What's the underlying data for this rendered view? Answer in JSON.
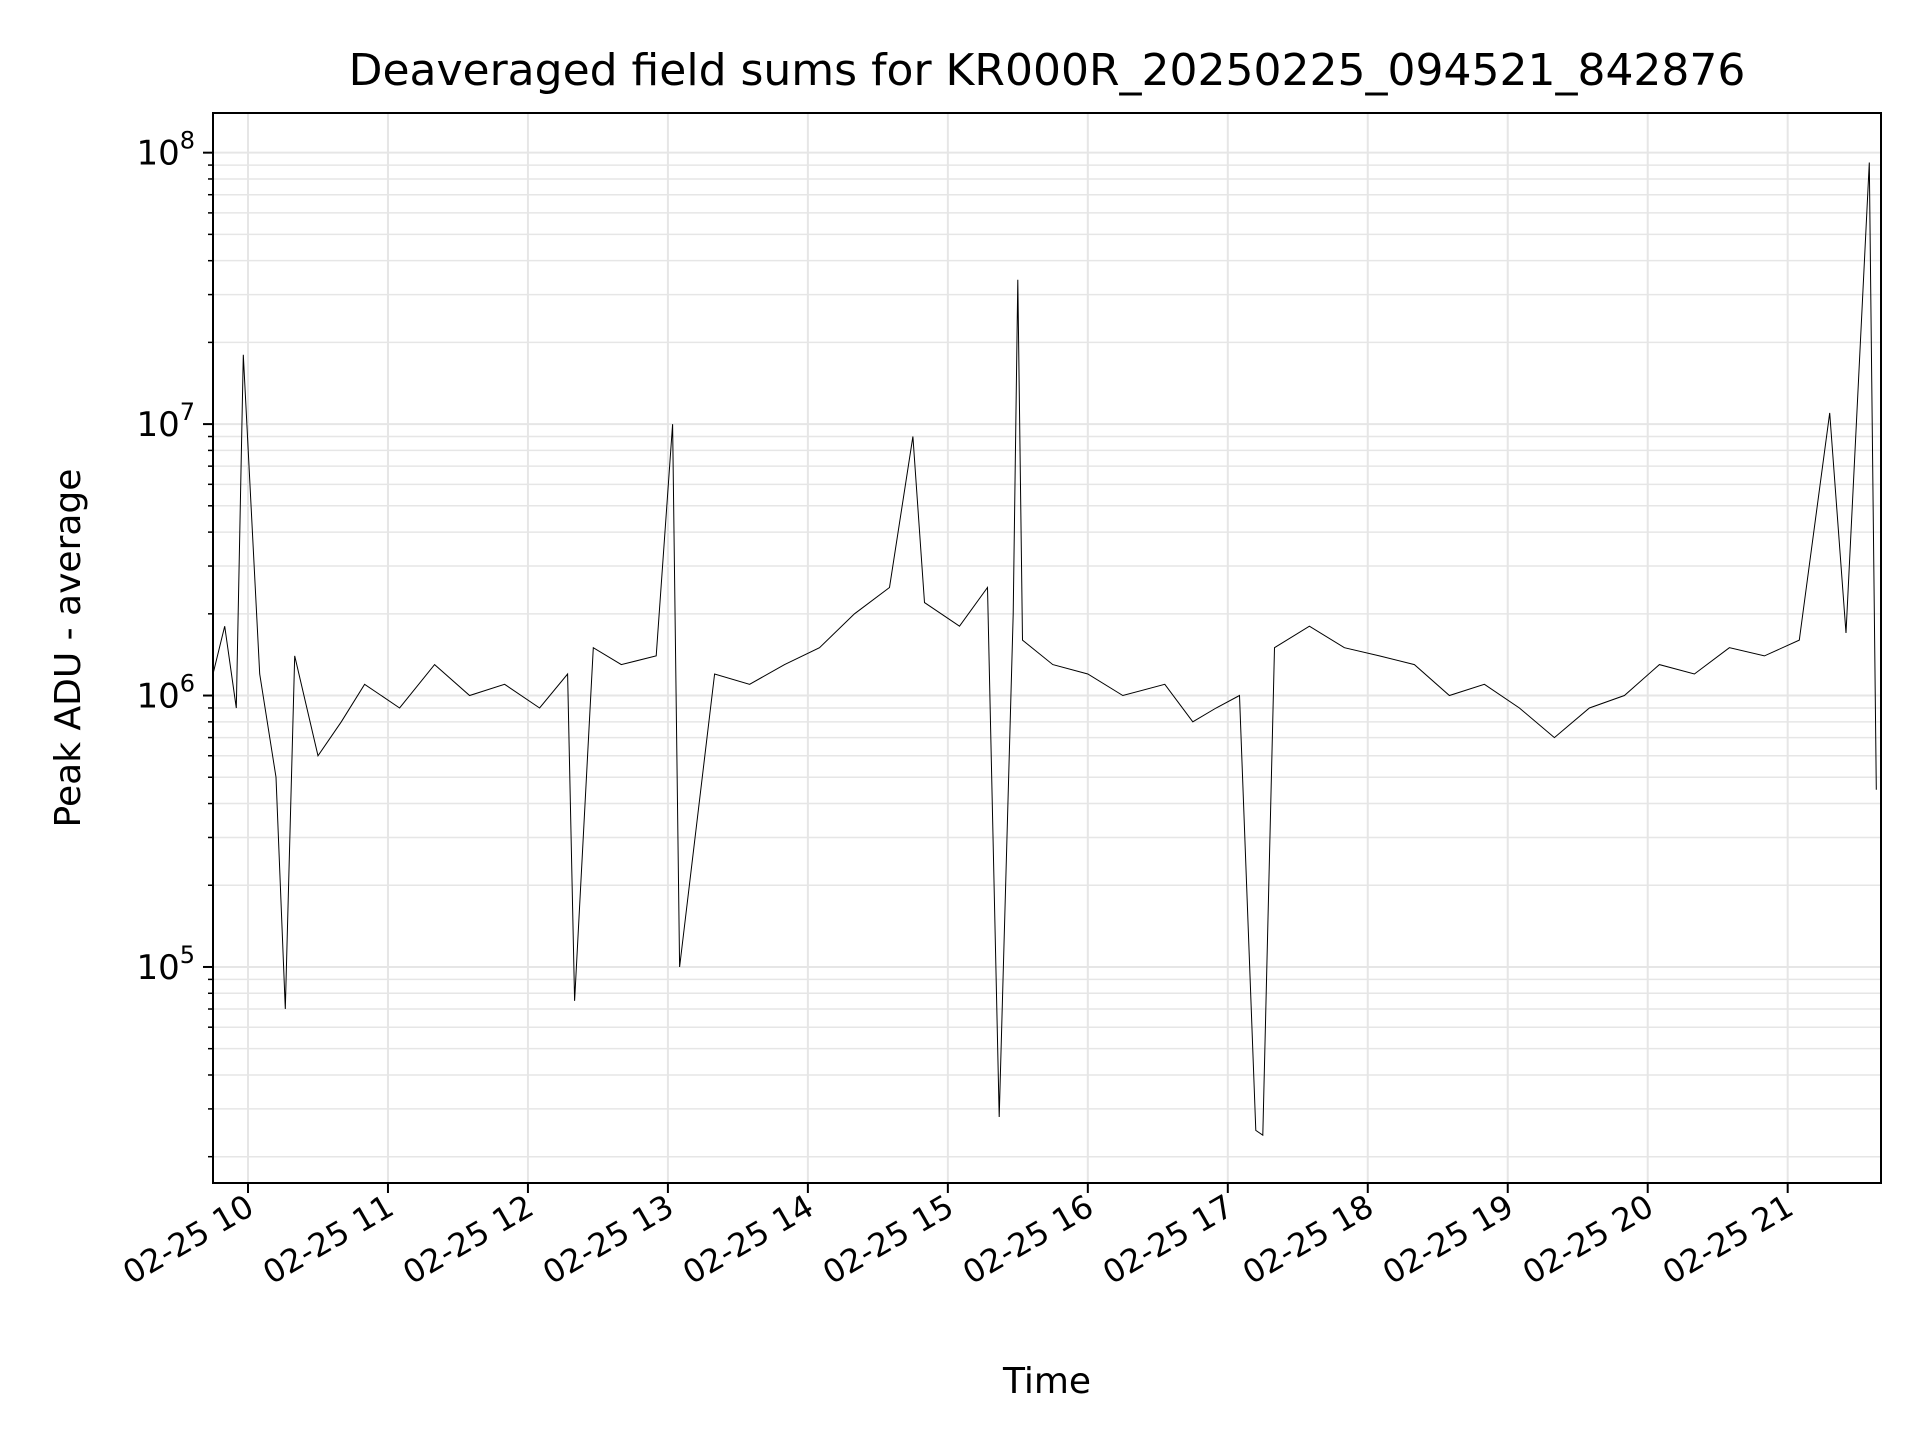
{
  "chart_data": {
    "type": "line",
    "title": "Deaveraged field sums for KR000R_20250225_094521_842876",
    "xlabel": "Time",
    "ylabel": "Peak ADU - average",
    "yscale": "log",
    "grid": true,
    "legend": "none",
    "line_color": "#000000",
    "xlim": [
      "2025-02-25 09:45",
      "2025-02-25 21:40"
    ],
    "ylim": [
      16000,
      140000000
    ],
    "x_ticks": [
      {
        "t": "2025-02-25 10:00",
        "label": "02-25 10"
      },
      {
        "t": "2025-02-25 11:00",
        "label": "02-25 11"
      },
      {
        "t": "2025-02-25 12:00",
        "label": "02-25 12"
      },
      {
        "t": "2025-02-25 13:00",
        "label": "02-25 13"
      },
      {
        "t": "2025-02-25 14:00",
        "label": "02-25 14"
      },
      {
        "t": "2025-02-25 15:00",
        "label": "02-25 15"
      },
      {
        "t": "2025-02-25 16:00",
        "label": "02-25 16"
      },
      {
        "t": "2025-02-25 17:00",
        "label": "02-25 17"
      },
      {
        "t": "2025-02-25 18:00",
        "label": "02-25 18"
      },
      {
        "t": "2025-02-25 19:00",
        "label": "02-25 19"
      },
      {
        "t": "2025-02-25 20:00",
        "label": "02-25 20"
      },
      {
        "t": "2025-02-25 21:00",
        "label": "02-25 21"
      }
    ],
    "y_ticks": [
      {
        "value": 100000,
        "base": "10",
        "exp": "5"
      },
      {
        "value": 1000000,
        "base": "10",
        "exp": "6"
      },
      {
        "value": 10000000,
        "base": "10",
        "exp": "7"
      },
      {
        "value": 100000000,
        "base": "10",
        "exp": "8"
      }
    ],
    "series": [
      {
        "x": [
          "2025-02-25 09:45",
          "2025-02-25 09:50",
          "2025-02-25 09:55",
          "2025-02-25 09:58",
          "2025-02-25 10:05",
          "2025-02-25 10:12",
          "2025-02-25 10:16",
          "2025-02-25 10:20",
          "2025-02-25 10:30",
          "2025-02-25 10:40",
          "2025-02-25 10:50",
          "2025-02-25 11:05",
          "2025-02-25 11:20",
          "2025-02-25 11:35",
          "2025-02-25 11:50",
          "2025-02-25 12:05",
          "2025-02-25 12:17",
          "2025-02-25 12:20",
          "2025-02-25 12:28",
          "2025-02-25 12:40",
          "2025-02-25 12:55",
          "2025-02-25 13:02",
          "2025-02-25 13:05",
          "2025-02-25 13:20",
          "2025-02-25 13:35",
          "2025-02-25 13:50",
          "2025-02-25 14:05",
          "2025-02-25 14:20",
          "2025-02-25 14:35",
          "2025-02-25 14:45",
          "2025-02-25 14:50",
          "2025-02-25 15:05",
          "2025-02-25 15:17",
          "2025-02-25 15:22",
          "2025-02-25 15:28",
          "2025-02-25 15:30",
          "2025-02-25 15:32",
          "2025-02-25 15:45",
          "2025-02-25 16:00",
          "2025-02-25 16:15",
          "2025-02-25 16:33",
          "2025-02-25 16:45",
          "2025-02-25 16:55",
          "2025-02-25 17:05",
          "2025-02-25 17:12",
          "2025-02-25 17:15",
          "2025-02-25 17:20",
          "2025-02-25 17:35",
          "2025-02-25 17:50",
          "2025-02-25 18:05",
          "2025-02-25 18:20",
          "2025-02-25 18:35",
          "2025-02-25 18:50",
          "2025-02-25 19:05",
          "2025-02-25 19:20",
          "2025-02-25 19:35",
          "2025-02-25 19:50",
          "2025-02-25 20:05",
          "2025-02-25 20:20",
          "2025-02-25 20:35",
          "2025-02-25 20:50",
          "2025-02-25 21:05",
          "2025-02-25 21:18",
          "2025-02-25 21:25",
          "2025-02-25 21:35",
          "2025-02-25 21:38"
        ],
        "y": [
          1200000,
          1800000,
          900000,
          18000000,
          1200000,
          500000,
          70000,
          1400000,
          600000,
          800000,
          1100000,
          900000,
          1300000,
          1000000,
          1100000,
          900000,
          1200000,
          75000,
          1500000,
          1300000,
          1400000,
          10000000,
          100000,
          1200000,
          1100000,
          1300000,
          1500000,
          2000000,
          2500000,
          9000000,
          2200000,
          1800000,
          2500000,
          28000,
          2000000,
          34000000,
          1600000,
          1300000,
          1200000,
          1000000,
          1100000,
          800000,
          900000,
          1000000,
          25000,
          24000,
          1500000,
          1800000,
          1500000,
          1400000,
          1300000,
          1000000,
          1100000,
          900000,
          700000,
          900000,
          1000000,
          1300000,
          1200000,
          1500000,
          1400000,
          1600000,
          11000000,
          1700000,
          92000000,
          450000
        ]
      }
    ]
  }
}
